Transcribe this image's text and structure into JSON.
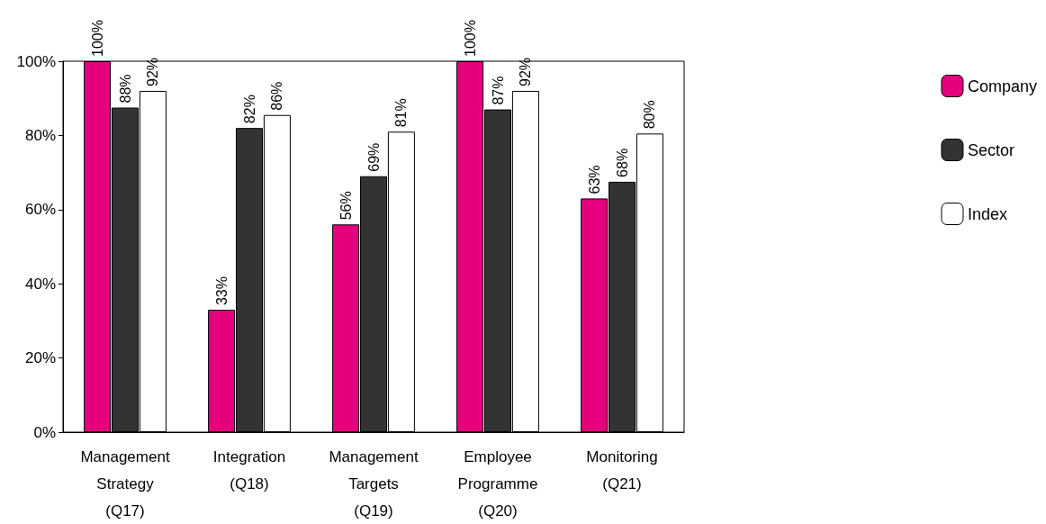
{
  "chart_data": {
    "type": "bar",
    "categories": [
      "Management\nStrategy\n(Q17)",
      "Integration\n(Q18)",
      "Management\nTargets\n(Q19)",
      "Employee\nProgramme\n(Q20)",
      "Monitoring\n(Q21)"
    ],
    "series": [
      {
        "name": "Company",
        "color": "#e6007e",
        "values": [
          100,
          33,
          56,
          100,
          63
        ],
        "value_labels": [
          "100%",
          "33%",
          "56%",
          "100%",
          "63%"
        ]
      },
      {
        "name": "Sector",
        "color": "#333333",
        "values": [
          87.5,
          82,
          69,
          87,
          67.5
        ],
        "value_labels": [
          "88%",
          "82%",
          "69%",
          "87%",
          "68%"
        ]
      },
      {
        "name": "Index",
        "color": "#ffffff",
        "values": [
          92,
          85.5,
          81,
          92,
          80.5
        ],
        "value_labels": [
          "92%",
          "86%",
          "81%",
          "92%",
          "80%"
        ]
      }
    ],
    "ylim": [
      0,
      100
    ],
    "yticks": [
      {
        "value": 0,
        "label": "0%"
      },
      {
        "value": 20,
        "label": "20%"
      },
      {
        "value": 40,
        "label": "40%"
      },
      {
        "value": 60,
        "label": "60%"
      },
      {
        "value": 80,
        "label": "80%"
      },
      {
        "value": 100,
        "label": "100%"
      }
    ],
    "grid": false,
    "legend": "top right"
  }
}
